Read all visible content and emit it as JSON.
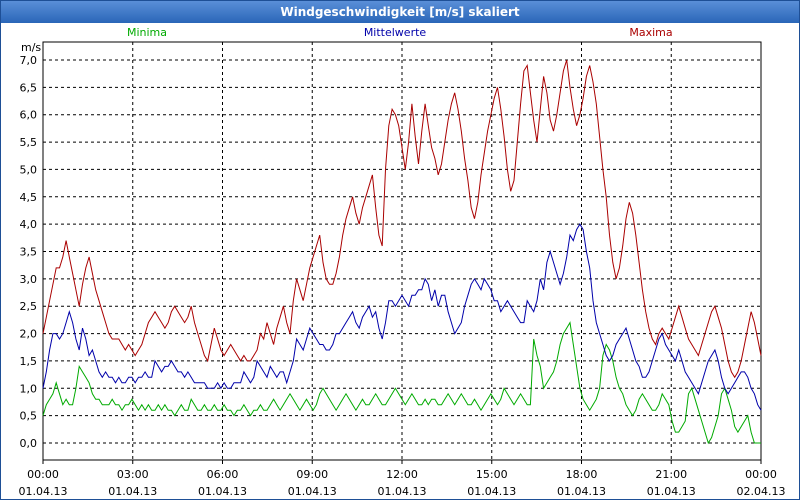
{
  "window": {
    "title": "Windgeschwindigkeit [m/s] skaliert"
  },
  "colors": {
    "minima": "#00aa00",
    "mittelwerte": "#0000aa",
    "maxima": "#aa0000",
    "grid": "#000000",
    "axis": "#000000",
    "title_bg": "#2a66b8"
  },
  "chart_data": {
    "type": "line",
    "title": "Windgeschwindigkeit [m/s] skaliert",
    "ylabel": "m/s",
    "xlabel": "",
    "ylim": [
      0,
      7.0
    ],
    "xlim_hours": [
      0,
      24
    ],
    "yticks": [
      "0,0",
      "0,5",
      "1,0",
      "1,5",
      "2,0",
      "2,5",
      "3,0",
      "3,5",
      "4,0",
      "4,5",
      "5,0",
      "5,5",
      "6,0",
      "6,5",
      "7,0"
    ],
    "xticks": [
      {
        "time": "00:00",
        "date": "01.04.13"
      },
      {
        "time": "03:00",
        "date": "01.04.13"
      },
      {
        "time": "06:00",
        "date": "01.04.13"
      },
      {
        "time": "09:00",
        "date": "01.04.13"
      },
      {
        "time": "12:00",
        "date": "01.04.13"
      },
      {
        "time": "15:00",
        "date": "01.04.13"
      },
      {
        "time": "18:00",
        "date": "01.04.13"
      },
      {
        "time": "21:00",
        "date": "01.04.13"
      },
      {
        "time": "00:00",
        "date": "02.04.13"
      }
    ],
    "grid": true,
    "x_step_hours": 0.0833,
    "series": [
      {
        "name": "Minima",
        "color": "#00aa00",
        "values": [
          0.5,
          0.7,
          0.8,
          0.9,
          1.1,
          0.9,
          0.7,
          0.8,
          0.7,
          0.7,
          1.0,
          1.4,
          1.3,
          1.2,
          1.1,
          0.9,
          0.8,
          0.8,
          0.7,
          0.7,
          0.7,
          0.8,
          0.7,
          0.7,
          0.6,
          0.7,
          0.7,
          0.8,
          0.7,
          0.6,
          0.7,
          0.6,
          0.7,
          0.6,
          0.6,
          0.7,
          0.6,
          0.7,
          0.6,
          0.6,
          0.5,
          0.6,
          0.7,
          0.6,
          0.6,
          0.8,
          0.7,
          0.6,
          0.6,
          0.7,
          0.6,
          0.6,
          0.7,
          0.6,
          0.6,
          0.7,
          0.6,
          0.6,
          0.5,
          0.6,
          0.6,
          0.7,
          0.6,
          0.5,
          0.6,
          0.6,
          0.7,
          0.6,
          0.6,
          0.7,
          0.8,
          0.7,
          0.6,
          0.7,
          0.8,
          0.9,
          0.8,
          0.7,
          0.6,
          0.7,
          0.8,
          0.7,
          0.6,
          0.7,
          0.9,
          1.0,
          0.9,
          0.8,
          0.7,
          0.6,
          0.7,
          0.8,
          0.9,
          0.8,
          0.7,
          0.6,
          0.7,
          0.8,
          0.7,
          0.7,
          0.8,
          0.9,
          0.8,
          0.7,
          0.7,
          0.8,
          0.9,
          1.0,
          0.9,
          0.8,
          0.7,
          0.8,
          0.9,
          0.8,
          0.7,
          0.7,
          0.8,
          0.7,
          0.8,
          0.8,
          0.7,
          0.7,
          0.8,
          0.9,
          0.8,
          0.7,
          0.8,
          0.9,
          0.8,
          0.7,
          0.7,
          0.8,
          0.7,
          0.6,
          0.7,
          0.8,
          0.9,
          0.8,
          0.7,
          0.8,
          1.0,
          0.9,
          0.8,
          0.7,
          0.8,
          0.9,
          0.8,
          0.7,
          0.7,
          1.9,
          1.6,
          1.4,
          1.0,
          1.1,
          1.2,
          1.3,
          1.5,
          1.8,
          2.0,
          2.1,
          2.2,
          1.8,
          1.4,
          1.0,
          0.8,
          0.7,
          0.6,
          0.7,
          0.8,
          1.0,
          1.6,
          1.8,
          1.7,
          1.5,
          1.2,
          1.0,
          0.9,
          0.7,
          0.6,
          0.5,
          0.6,
          0.8,
          0.9,
          0.8,
          0.7,
          0.6,
          0.6,
          0.7,
          0.9,
          0.8,
          0.7,
          0.4,
          0.2,
          0.2,
          0.3,
          0.4,
          0.9,
          1.0,
          0.8,
          0.6,
          0.4,
          0.2,
          0.0,
          0.1,
          0.3,
          0.5,
          0.9,
          1.0,
          0.8,
          0.6,
          0.3,
          0.2,
          0.3,
          0.4,
          0.5,
          0.2,
          0.0,
          0.0,
          0.0
        ]
      },
      {
        "name": "Mittelwerte",
        "color": "#0000aa",
        "values": [
          1.0,
          1.3,
          1.7,
          2.0,
          2.0,
          1.9,
          2.0,
          2.2,
          2.4,
          2.2,
          1.9,
          1.7,
          2.1,
          1.9,
          1.6,
          1.7,
          1.5,
          1.3,
          1.2,
          1.3,
          1.2,
          1.2,
          1.1,
          1.2,
          1.1,
          1.1,
          1.2,
          1.2,
          1.1,
          1.2,
          1.2,
          1.3,
          1.2,
          1.2,
          1.5,
          1.4,
          1.3,
          1.4,
          1.4,
          1.5,
          1.4,
          1.3,
          1.3,
          1.2,
          1.3,
          1.2,
          1.1,
          1.1,
          1.1,
          1.1,
          1.0,
          1.0,
          1.0,
          1.1,
          1.0,
          1.1,
          1.0,
          1.0,
          1.1,
          1.1,
          1.1,
          1.3,
          1.2,
          1.1,
          1.2,
          1.5,
          1.4,
          1.3,
          1.2,
          1.4,
          1.3,
          1.2,
          1.3,
          1.3,
          1.1,
          1.3,
          1.5,
          1.9,
          1.8,
          1.7,
          1.9,
          2.1,
          2.0,
          1.9,
          1.8,
          1.8,
          1.7,
          1.7,
          1.8,
          2.0,
          2.0,
          2.1,
          2.2,
          2.3,
          2.4,
          2.2,
          2.1,
          2.3,
          2.4,
          2.5,
          2.3,
          2.4,
          2.1,
          1.9,
          2.2,
          2.6,
          2.6,
          2.5,
          2.6,
          2.7,
          2.6,
          2.5,
          2.7,
          2.7,
          2.8,
          2.8,
          3.0,
          2.9,
          2.6,
          2.8,
          2.5,
          2.7,
          2.7,
          2.4,
          2.2,
          2.0,
          2.1,
          2.2,
          2.5,
          2.7,
          2.9,
          3.0,
          2.9,
          2.8,
          3.0,
          2.9,
          2.8,
          2.6,
          2.6,
          2.4,
          2.5,
          2.6,
          2.5,
          2.4,
          2.3,
          2.2,
          2.2,
          2.6,
          2.5,
          2.4,
          2.6,
          3.0,
          2.8,
          3.3,
          3.5,
          3.3,
          3.1,
          2.9,
          3.1,
          3.4,
          3.8,
          3.7,
          3.9,
          4.0,
          3.9,
          3.5,
          3.2,
          2.6,
          2.2,
          2.0,
          1.8,
          1.6,
          1.5,
          1.6,
          1.8,
          1.9,
          2.0,
          2.1,
          1.9,
          1.7,
          1.5,
          1.4,
          1.2,
          1.2,
          1.3,
          1.5,
          1.7,
          1.9,
          2.0,
          1.8,
          1.7,
          1.6,
          1.5,
          1.7,
          1.5,
          1.3,
          1.2,
          1.1,
          1.0,
          0.9,
          1.1,
          1.3,
          1.5,
          1.6,
          1.7,
          1.5,
          1.2,
          1.0,
          0.9,
          1.0,
          1.1,
          1.2,
          1.3,
          1.3,
          1.2,
          1.0,
          0.9,
          0.7,
          0.6
        ]
      },
      {
        "name": "Maxima",
        "color": "#aa0000",
        "values": [
          2.0,
          2.3,
          2.6,
          2.9,
          3.2,
          3.2,
          3.4,
          3.7,
          3.4,
          3.1,
          2.8,
          2.5,
          2.9,
          3.2,
          3.4,
          3.1,
          2.8,
          2.6,
          2.4,
          2.2,
          2.0,
          1.9,
          1.9,
          1.9,
          1.8,
          1.7,
          1.8,
          1.7,
          1.6,
          1.7,
          1.8,
          2.0,
          2.2,
          2.3,
          2.4,
          2.3,
          2.2,
          2.1,
          2.2,
          2.4,
          2.5,
          2.4,
          2.3,
          2.2,
          2.3,
          2.5,
          2.2,
          2.0,
          1.8,
          1.6,
          1.5,
          1.8,
          2.1,
          1.9,
          1.7,
          1.6,
          1.7,
          1.8,
          1.7,
          1.6,
          1.5,
          1.6,
          1.5,
          1.5,
          1.6,
          1.7,
          2.0,
          1.9,
          2.2,
          2.0,
          1.8,
          2.1,
          2.3,
          2.5,
          2.2,
          2.0,
          2.6,
          3.0,
          2.8,
          2.6,
          2.9,
          3.2,
          3.4,
          3.6,
          3.8,
          3.3,
          3.0,
          2.9,
          2.9,
          3.1,
          3.4,
          3.8,
          4.1,
          4.3,
          4.5,
          4.2,
          4.0,
          4.3,
          4.5,
          4.7,
          4.9,
          4.3,
          3.8,
          3.6,
          5.0,
          5.8,
          6.1,
          6.0,
          5.8,
          5.4,
          5.0,
          5.5,
          6.2,
          5.6,
          5.1,
          5.7,
          6.2,
          5.8,
          5.4,
          5.2,
          4.9,
          5.1,
          5.5,
          5.9,
          6.2,
          6.4,
          6.1,
          5.7,
          5.2,
          4.8,
          4.3,
          4.1,
          4.4,
          4.9,
          5.3,
          5.7,
          6.0,
          6.3,
          6.5,
          6.1,
          5.6,
          5.0,
          4.6,
          4.8,
          5.5,
          6.2,
          6.8,
          6.9,
          6.4,
          5.9,
          5.5,
          6.1,
          6.7,
          6.4,
          5.9,
          5.7,
          6.0,
          6.4,
          6.8,
          7.0,
          6.5,
          6.1,
          5.8,
          6.0,
          6.3,
          6.7,
          6.9,
          6.6,
          6.2,
          5.6,
          5.0,
          4.5,
          3.8,
          3.3,
          3.0,
          3.2,
          3.6,
          4.1,
          4.4,
          4.2,
          3.8,
          3.3,
          2.8,
          2.4,
          2.1,
          1.9,
          1.8,
          2.0,
          2.1,
          2.0,
          1.9,
          2.1,
          2.3,
          2.5,
          2.3,
          2.1,
          1.9,
          1.8,
          1.7,
          1.6,
          1.8,
          2.0,
          2.2,
          2.4,
          2.5,
          2.3,
          2.1,
          1.8,
          1.5,
          1.3,
          1.2,
          1.3,
          1.5,
          1.8,
          2.1,
          2.4,
          2.2,
          1.9,
          1.6
        ]
      }
    ]
  }
}
